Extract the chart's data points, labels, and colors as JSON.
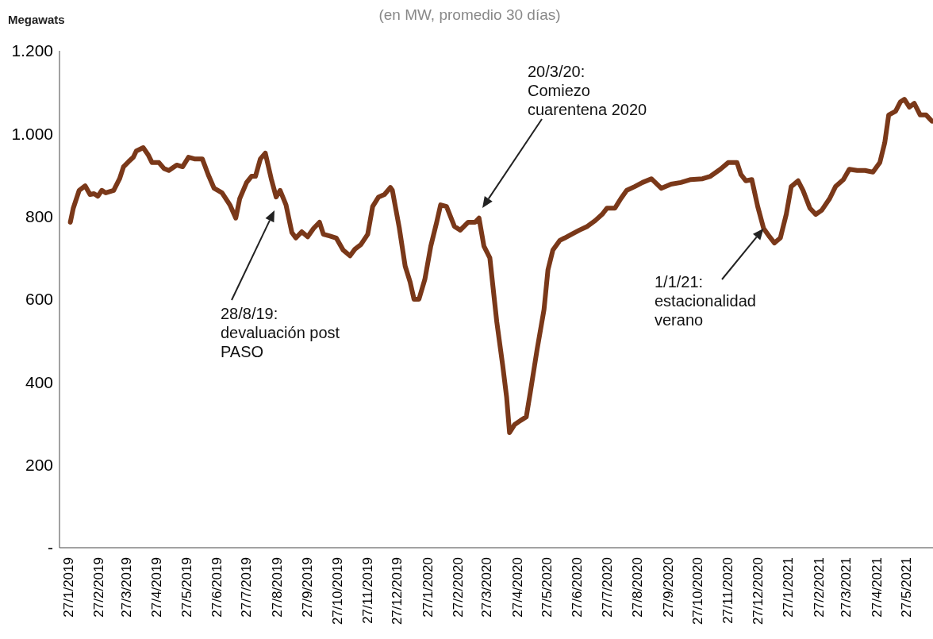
{
  "chart_data": {
    "type": "line",
    "subtitle": "(en MW, promedio 30 días)",
    "ylabel": "Megawats",
    "color": "#7a3819",
    "x": [
      "2019-01-29",
      "2019-02-01",
      "2019-02-07",
      "2019-02-13",
      "2019-02-18",
      "2019-02-22",
      "2019-02-26",
      "2019-03-02",
      "2019-03-06",
      "2019-03-14",
      "2019-03-20",
      "2019-03-24",
      "2019-03-29",
      "2019-04-03",
      "2019-04-06",
      "2019-04-13",
      "2019-04-18",
      "2019-04-22",
      "2019-04-29",
      "2019-05-04",
      "2019-05-09",
      "2019-05-17",
      "2019-05-23",
      "2019-05-29",
      "2019-06-04",
      "2019-06-12",
      "2019-06-18",
      "2019-06-24",
      "2019-07-02",
      "2019-07-10",
      "2019-07-16",
      "2019-07-20",
      "2019-07-27",
      "2019-08-01",
      "2019-08-05",
      "2019-08-10",
      "2019-08-15",
      "2019-08-21",
      "2019-08-26",
      "2019-08-30",
      "2019-09-05",
      "2019-09-11",
      "2019-09-15",
      "2019-09-21",
      "2019-09-27",
      "2019-10-03",
      "2019-10-09",
      "2019-10-13",
      "2019-10-19",
      "2019-10-26",
      "2019-11-02",
      "2019-11-09",
      "2019-11-14",
      "2019-11-20",
      "2019-11-27",
      "2019-12-02",
      "2019-12-08",
      "2019-12-14",
      "2019-12-20",
      "2019-12-22",
      "2019-12-29",
      "2020-01-04",
      "2020-01-09",
      "2020-01-13",
      "2020-01-18",
      "2020-01-24",
      "2020-01-30",
      "2020-02-05",
      "2020-02-09",
      "2020-02-15",
      "2020-02-23",
      "2020-02-29",
      "2020-03-08",
      "2020-03-15",
      "2020-03-19",
      "2020-03-24",
      "2020-03-30",
      "2020-04-06",
      "2020-04-12",
      "2020-04-16",
      "2020-04-19",
      "2020-04-24",
      "2020-04-30",
      "2020-05-06",
      "2020-05-10",
      "2020-05-17",
      "2020-05-24",
      "2020-05-28",
      "2020-06-02",
      "2020-06-09",
      "2020-06-14",
      "2020-06-21",
      "2020-06-29",
      "2020-07-07",
      "2020-07-15",
      "2020-07-22",
      "2020-07-27",
      "2020-08-04",
      "2020-08-10",
      "2020-08-16",
      "2020-08-24",
      "2020-09-01",
      "2020-09-10",
      "2020-09-14",
      "2020-09-20",
      "2020-09-30",
      "2020-10-10",
      "2020-10-20",
      "2020-11-01",
      "2020-11-09",
      "2020-11-19",
      "2020-11-27",
      "2020-12-06",
      "2020-12-10",
      "2020-12-15",
      "2020-12-21",
      "2020-12-27",
      "2021-01-02",
      "2021-01-08",
      "2021-01-13",
      "2021-01-19",
      "2021-01-25",
      "2021-01-30",
      "2021-02-06",
      "2021-02-11",
      "2021-02-18",
      "2021-02-24",
      "2021-03-02",
      "2021-03-10",
      "2021-03-16",
      "2021-03-24",
      "2021-03-30",
      "2021-04-07",
      "2021-04-15",
      "2021-04-23",
      "2021-04-30",
      "2021-05-05",
      "2021-05-09",
      "2021-05-16",
      "2021-05-21",
      "2021-05-25",
      "2021-05-30",
      "2021-06-04",
      "2021-06-10",
      "2021-06-16",
      "2021-06-22"
    ],
    "values": [
      786,
      820,
      863,
      874,
      853,
      855,
      849,
      863,
      857,
      863,
      891,
      920,
      932,
      943,
      958,
      966,
      949,
      930,
      930,
      916,
      911,
      924,
      920,
      943,
      939,
      939,
      901,
      868,
      857,
      828,
      796,
      843,
      882,
      897,
      897,
      939,
      953,
      891,
      847,
      863,
      828,
      761,
      748,
      763,
      751,
      771,
      786,
      757,
      753,
      748,
      719,
      705,
      721,
      732,
      757,
      824,
      847,
      853,
      870,
      863,
      773,
      680,
      642,
      600,
      600,
      648,
      728,
      786,
      828,
      824,
      776,
      767,
      786,
      786,
      796,
      728,
      700,
      546,
      441,
      364,
      278,
      297,
      307,
      316,
      374,
      479,
      575,
      671,
      719,
      742,
      748,
      757,
      767,
      776,
      790,
      805,
      820,
      820,
      843,
      863,
      872,
      882,
      891,
      882,
      868,
      878,
      882,
      889,
      891,
      897,
      914,
      930,
      930,
      901,
      886,
      889,
      824,
      771,
      751,
      736,
      748,
      805,
      872,
      886,
      863,
      820,
      805,
      815,
      843,
      872,
      889,
      914,
      911,
      911,
      907,
      930,
      978,
      1045,
      1054,
      1077,
      1083,
      1064,
      1073,
      1045,
      1045,
      1030
    ],
    "xlim": [
      "2019-01-18",
      "2021-06-23"
    ],
    "xticks": [
      {
        "value": "2019-01-27",
        "label": "27/1/2019"
      },
      {
        "value": "2019-02-27",
        "label": "27/2/2019"
      },
      {
        "value": "2019-03-27",
        "label": "27/3/2019"
      },
      {
        "value": "2019-04-27",
        "label": "27/4/2019"
      },
      {
        "value": "2019-05-27",
        "label": "27/5/2019"
      },
      {
        "value": "2019-06-27",
        "label": "27/6/2019"
      },
      {
        "value": "2019-07-27",
        "label": "27/7/2019"
      },
      {
        "value": "2019-08-27",
        "label": "27/8/2019"
      },
      {
        "value": "2019-09-27",
        "label": "27/9/2019"
      },
      {
        "value": "2019-10-27",
        "label": "27/10/2019"
      },
      {
        "value": "2019-11-27",
        "label": "27/11/2019"
      },
      {
        "value": "2019-12-27",
        "label": "27/12/2019"
      },
      {
        "value": "2020-01-27",
        "label": "27/1/2020"
      },
      {
        "value": "2020-02-27",
        "label": "27/2/2020"
      },
      {
        "value": "2020-03-27",
        "label": "27/3/2020"
      },
      {
        "value": "2020-04-27",
        "label": "27/4/2020"
      },
      {
        "value": "2020-05-27",
        "label": "27/5/2020"
      },
      {
        "value": "2020-06-27",
        "label": "27/6/2020"
      },
      {
        "value": "2020-07-27",
        "label": "27/7/2020"
      },
      {
        "value": "2020-08-27",
        "label": "27/8/2020"
      },
      {
        "value": "2020-09-27",
        "label": "27/9/2020"
      },
      {
        "value": "2020-10-27",
        "label": "27/10/2020"
      },
      {
        "value": "2020-11-27",
        "label": "27/11/2020"
      },
      {
        "value": "2020-12-27",
        "label": "27/12/2020"
      },
      {
        "value": "2021-01-27",
        "label": "27/1/2021"
      },
      {
        "value": "2021-02-27",
        "label": "27/2/2021"
      },
      {
        "value": "2021-03-27",
        "label": "27/3/2021"
      },
      {
        "value": "2021-04-27",
        "label": "27/4/2021"
      },
      {
        "value": "2021-05-27",
        "label": "27/5/2021"
      }
    ],
    "ylim": [
      0,
      1200
    ],
    "yticks": [
      {
        "value": 0,
        "label": "-"
      },
      200,
      400,
      600,
      800,
      {
        "value": 1000,
        "label": "1.000"
      },
      {
        "value": 1200,
        "label": "1.200"
      }
    ],
    "annotations": [
      "28/8/19: devaluación post PASO",
      "20/3/20: Comiezo cuarentena 2020",
      {
        "text": "1/1/21: estacionalidad verano",
        "x": "2021-01-02",
        "y": 771
      }
    ]
  }
}
